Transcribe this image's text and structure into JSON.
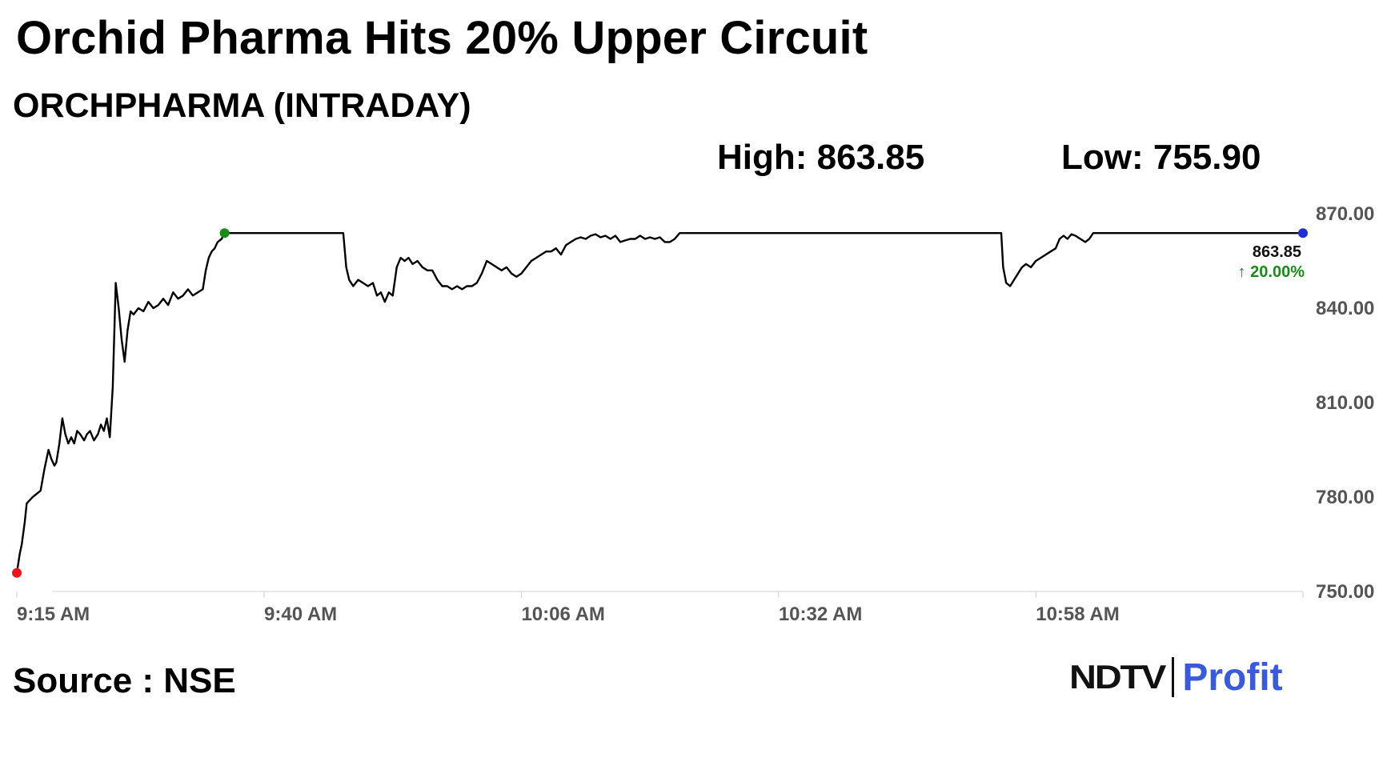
{
  "header": {
    "title": "Orchid Pharma Hits 20% Upper Circuit",
    "subtitle": "ORCHPHARMA (INTRADAY)",
    "high_label": "High: 863.85",
    "low_label": "Low: 755.90"
  },
  "footer": {
    "source": "Source : NSE",
    "logo_left": "NDTV",
    "logo_right": "Profit"
  },
  "colors": {
    "line": "#000000",
    "start_marker": "#e8151b",
    "high_marker": "#1a8a1a",
    "end_marker": "#1f2fd0",
    "change_positive": "#1a8a1a",
    "logo_ndtv": "#111111",
    "logo_profit": "#3a5bd9"
  },
  "chart_data": {
    "type": "line",
    "title": "Orchid Pharma Hits 20% Upper Circuit",
    "subtitle": "ORCHPHARMA (INTRADAY)",
    "xlabel": "",
    "ylabel": "",
    "x_tick_labels": [
      "9:15 AM",
      "9:40 AM",
      "10:06 AM",
      "10:32 AM",
      "10:58 AM"
    ],
    "x_tick_minutes": [
      0,
      25,
      51,
      77,
      103
    ],
    "x_range_minutes": [
      0,
      130
    ],
    "y_ticks": [
      750,
      780,
      810,
      840,
      870
    ],
    "y_tick_labels": [
      "750.00",
      "780.00",
      "810.00",
      "840.00",
      "870.00"
    ],
    "ylim": [
      750,
      870
    ],
    "grid": false,
    "last_value_label": "863.85",
    "change_label": "↑ 20.00%",
    "series": [
      {
        "values": [
          [
            0,
            755.9
          ],
          [
            0.3,
            762
          ],
          [
            0.5,
            765
          ],
          [
            0.8,
            772
          ],
          [
            1.0,
            778
          ],
          [
            1.3,
            779
          ],
          [
            1.6,
            780
          ],
          [
            2.0,
            781
          ],
          [
            2.4,
            782
          ],
          [
            2.8,
            789
          ],
          [
            3.0,
            792
          ],
          [
            3.2,
            795
          ],
          [
            3.5,
            792
          ],
          [
            3.8,
            790
          ],
          [
            4.0,
            791
          ],
          [
            4.3,
            797
          ],
          [
            4.6,
            805
          ],
          [
            4.9,
            800
          ],
          [
            5.2,
            797
          ],
          [
            5.5,
            799
          ],
          [
            5.8,
            797
          ],
          [
            6.1,
            801
          ],
          [
            6.4,
            800
          ],
          [
            6.8,
            798
          ],
          [
            7.1,
            800
          ],
          [
            7.4,
            801
          ],
          [
            7.8,
            798
          ],
          [
            8.2,
            800
          ],
          [
            8.5,
            803
          ],
          [
            8.8,
            801
          ],
          [
            9.1,
            805
          ],
          [
            9.4,
            799
          ],
          [
            9.7,
            815
          ],
          [
            10.0,
            848
          ],
          [
            10.3,
            840
          ],
          [
            10.6,
            830
          ],
          [
            10.9,
            823
          ],
          [
            11.2,
            833
          ],
          [
            11.5,
            839
          ],
          [
            11.8,
            838
          ],
          [
            12.3,
            840
          ],
          [
            12.8,
            839
          ],
          [
            13.3,
            842
          ],
          [
            13.8,
            840
          ],
          [
            14.3,
            841
          ],
          [
            14.8,
            843
          ],
          [
            15.3,
            841
          ],
          [
            15.8,
            845
          ],
          [
            16.3,
            843
          ],
          [
            16.8,
            844
          ],
          [
            17.3,
            846
          ],
          [
            17.8,
            844
          ],
          [
            18.3,
            845
          ],
          [
            18.8,
            846
          ],
          [
            19.1,
            852
          ],
          [
            19.4,
            856
          ],
          [
            19.7,
            858
          ],
          [
            20.0,
            859
          ],
          [
            20.3,
            861
          ],
          [
            20.7,
            862
          ],
          [
            21.0,
            863.85
          ],
          [
            33.0,
            863.85
          ],
          [
            33.3,
            853
          ],
          [
            33.6,
            849
          ],
          [
            34.0,
            847
          ],
          [
            34.5,
            849
          ],
          [
            35.0,
            848
          ],
          [
            35.5,
            847
          ],
          [
            36.0,
            848
          ],
          [
            36.4,
            844
          ],
          [
            36.8,
            845
          ],
          [
            37.2,
            842
          ],
          [
            37.6,
            845
          ],
          [
            38.0,
            844
          ],
          [
            38.4,
            853
          ],
          [
            38.8,
            856
          ],
          [
            39.2,
            855
          ],
          [
            39.6,
            856
          ],
          [
            40.0,
            854
          ],
          [
            40.5,
            855
          ],
          [
            41.0,
            853
          ],
          [
            41.5,
            852
          ],
          [
            42.0,
            852
          ],
          [
            42.5,
            849
          ],
          [
            43.0,
            847
          ],
          [
            43.5,
            847
          ],
          [
            44.0,
            846
          ],
          [
            44.5,
            847
          ],
          [
            45.0,
            846
          ],
          [
            45.5,
            847
          ],
          [
            46.0,
            847
          ],
          [
            46.5,
            848
          ],
          [
            47.0,
            851
          ],
          [
            47.5,
            855
          ],
          [
            48.0,
            854
          ],
          [
            48.5,
            853
          ],
          [
            49.0,
            852
          ],
          [
            49.5,
            853
          ],
          [
            50.0,
            851
          ],
          [
            50.5,
            850
          ],
          [
            51.0,
            851
          ],
          [
            51.5,
            853
          ],
          [
            52.0,
            855
          ],
          [
            52.5,
            856
          ],
          [
            53.0,
            857
          ],
          [
            53.5,
            858
          ],
          [
            54.0,
            858
          ],
          [
            54.5,
            859
          ],
          [
            55.0,
            857
          ],
          [
            55.5,
            860
          ],
          [
            56.0,
            861
          ],
          [
            56.5,
            862
          ],
          [
            57.0,
            862.5
          ],
          [
            57.5,
            862
          ],
          [
            58.0,
            863
          ],
          [
            58.5,
            863.5
          ],
          [
            59.0,
            862.5
          ],
          [
            59.5,
            863
          ],
          [
            60.0,
            862
          ],
          [
            60.5,
            863
          ],
          [
            61.0,
            861
          ],
          [
            61.5,
            861.5
          ],
          [
            62.0,
            862
          ],
          [
            62.5,
            862
          ],
          [
            63.0,
            863
          ],
          [
            63.5,
            862
          ],
          [
            64.0,
            862.5
          ],
          [
            64.5,
            862
          ],
          [
            65.0,
            862.5
          ],
          [
            65.5,
            861
          ],
          [
            66.0,
            861
          ],
          [
            66.5,
            862
          ],
          [
            67.0,
            863.85
          ],
          [
            99.5,
            863.85
          ],
          [
            99.7,
            853
          ],
          [
            100.0,
            848
          ],
          [
            100.4,
            847
          ],
          [
            100.8,
            849
          ],
          [
            101.2,
            851
          ],
          [
            101.6,
            853
          ],
          [
            102.0,
            854
          ],
          [
            102.5,
            853
          ],
          [
            103.0,
            855
          ],
          [
            103.5,
            856
          ],
          [
            104.0,
            857
          ],
          [
            104.5,
            858
          ],
          [
            105.0,
            859
          ],
          [
            105.4,
            862
          ],
          [
            105.8,
            863
          ],
          [
            106.2,
            862
          ],
          [
            106.6,
            863.5
          ],
          [
            107.0,
            863
          ],
          [
            107.5,
            862
          ],
          [
            108.0,
            861
          ],
          [
            108.4,
            862
          ],
          [
            108.8,
            863.85
          ],
          [
            130.0,
            863.85
          ]
        ]
      }
    ],
    "markers": [
      {
        "role": "open",
        "x": 0,
        "y": 755.9
      },
      {
        "role": "high",
        "x": 21.0,
        "y": 863.85
      },
      {
        "role": "last",
        "x": 130.0,
        "y": 863.85
      }
    ]
  }
}
